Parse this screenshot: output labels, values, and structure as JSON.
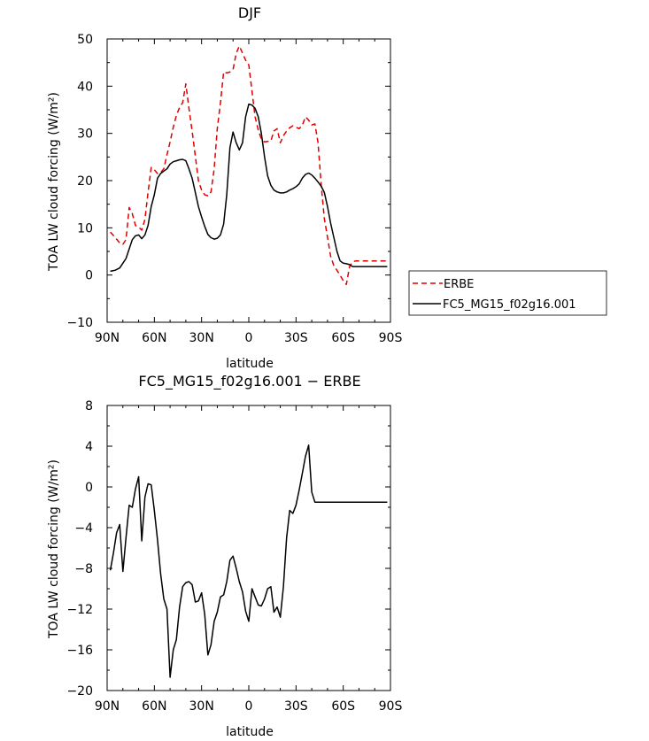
{
  "chart_data": [
    {
      "type": "line",
      "title": "DJF",
      "xlabel": "latitude",
      "ylabel": "TOA LW cloud forcing (W/m²)",
      "xlim": [
        90,
        -90
      ],
      "ylim": [
        -10,
        50
      ],
      "xticks": [
        90,
        60,
        30,
        0,
        -30,
        -60,
        -90
      ],
      "xtick_labels": [
        "90N",
        "60N",
        "30N",
        "0",
        "30S",
        "60S",
        "90S"
      ],
      "yticks": [
        -10,
        0,
        10,
        20,
        30,
        40,
        50
      ],
      "ytick_labels": [
        "−10",
        "0",
        "10",
        "20",
        "30",
        "40",
        "50"
      ],
      "legend": {
        "position": "right",
        "entries": [
          "ERBE",
          "FC5_MG15_f02g16.001"
        ]
      },
      "series": [
        {
          "name": "ERBE",
          "color": "#e00000",
          "dash": "dashed",
          "x": [
            88,
            85,
            82,
            80,
            78,
            76,
            74,
            72,
            70,
            68,
            66,
            64,
            62,
            60,
            58,
            56,
            54,
            52,
            50,
            48,
            46,
            44,
            42,
            40,
            38,
            36,
            34,
            32,
            30,
            28,
            26,
            24,
            22,
            20,
            18,
            16,
            14,
            12,
            10,
            8,
            6,
            4,
            2,
            0,
            -2,
            -4,
            -6,
            -8,
            -10,
            -12,
            -14,
            -16,
            -18,
            -20,
            -22,
            -24,
            -26,
            -28,
            -30,
            -32,
            -34,
            -36,
            -38,
            -40,
            -42,
            -44,
            -46,
            -48,
            -50,
            -52,
            -54,
            -56,
            -58,
            -60,
            -62,
            -64,
            -66,
            -68,
            -70,
            -72,
            -74,
            -76,
            -78,
            -80,
            -82,
            -84,
            -86,
            -88
          ],
          "y": [
            9.1,
            8,
            6.8,
            6.5,
            7.5,
            14.3,
            13,
            10.5,
            10.2,
            9.5,
            11.8,
            17.5,
            22.8,
            22.3,
            21.5,
            21.7,
            22.5,
            25.5,
            28.2,
            31.3,
            33.8,
            35.5,
            36.5,
            40.5,
            35.3,
            30.5,
            25.2,
            20,
            18,
            17,
            16.8,
            17.6,
            22.5,
            31,
            36.5,
            43,
            42.8,
            43,
            43.5,
            47,
            48.5,
            47,
            45.5,
            44.5,
            39,
            33.5,
            30.7,
            28.8,
            28.2,
            28.3,
            28.4,
            30.5,
            31,
            28,
            29.5,
            30.5,
            31.2,
            31.6,
            31.3,
            31,
            31.7,
            33.5,
            32.8,
            31.8,
            32,
            28,
            19,
            12,
            8,
            4,
            2,
            1,
            0,
            -1.2,
            -2,
            1.8,
            2.8,
            3,
            3,
            3,
            3,
            3,
            3,
            3,
            3,
            3,
            3,
            3
          ]
        },
        {
          "name": "FC5_MG15_f02g16.001",
          "color": "#000000",
          "dash": "solid",
          "x": [
            88,
            85,
            82,
            80,
            78,
            76,
            74,
            72,
            70,
            68,
            66,
            64,
            62,
            60,
            58,
            56,
            54,
            52,
            50,
            48,
            46,
            44,
            42,
            40,
            38,
            36,
            34,
            32,
            30,
            28,
            26,
            24,
            22,
            20,
            18,
            16,
            14,
            12,
            10,
            8,
            6,
            4,
            2,
            0,
            -2,
            -4,
            -6,
            -8,
            -10,
            -12,
            -14,
            -16,
            -18,
            -20,
            -22,
            -24,
            -26,
            -28,
            -30,
            -32,
            -34,
            -36,
            -38,
            -40,
            -42,
            -44,
            -46,
            -48,
            -50,
            -52,
            -54,
            -56,
            -58,
            -60,
            -62,
            -64,
            -66,
            -68,
            -70,
            -72,
            -74,
            -76,
            -78,
            -80,
            -82,
            -84,
            -86,
            -88
          ],
          "y": [
            0.8,
            1,
            1.5,
            2.5,
            3.5,
            5.5,
            7.5,
            8.3,
            8.5,
            7.7,
            8.5,
            10.5,
            14.5,
            17,
            20.5,
            21.5,
            22,
            22.5,
            23.5,
            24,
            24.2,
            24.4,
            24.5,
            24.2,
            22.5,
            20.5,
            17.5,
            14.5,
            12.3,
            10.3,
            8.6,
            7.9,
            7.6,
            7.8,
            8.5,
            10.8,
            17,
            27,
            30.3,
            28,
            26.5,
            28,
            33.5,
            36.2,
            36,
            35.3,
            33.5,
            30,
            25,
            21,
            19,
            18,
            17.6,
            17.4,
            17.4,
            17.6,
            18,
            18.3,
            18.7,
            19.3,
            20.5,
            21.3,
            21.6,
            21.2,
            20.5,
            19.7,
            18.8,
            17.5,
            14.5,
            11,
            8,
            5,
            3,
            2.5,
            2.4,
            2.2,
            1.8,
            1.8,
            1.8,
            1.8,
            1.8,
            1.8,
            1.8,
            1.8,
            1.8,
            1.8,
            1.8,
            1.8
          ]
        }
      ]
    },
    {
      "type": "line",
      "title": "FC5_MG15_f02g16.001 − ERBE",
      "xlabel": "latitude",
      "ylabel": "TOA LW cloud forcing (W/m²)",
      "xlim": [
        90,
        -90
      ],
      "ylim": [
        -20,
        8
      ],
      "xticks": [
        90,
        60,
        30,
        0,
        -30,
        -60,
        -90
      ],
      "xtick_labels": [
        "90N",
        "60N",
        "30N",
        "0",
        "30S",
        "60S",
        "90S"
      ],
      "yticks": [
        -20,
        -16,
        -12,
        -8,
        -4,
        0,
        4,
        8
      ],
      "ytick_labels": [
        "−20",
        "−16",
        "−12",
        "−8",
        "−4",
        "0",
        "4",
        "8"
      ],
      "series": [
        {
          "name": "FC5_MG15_f02g16.001 − ERBE",
          "color": "#000000",
          "dash": "solid",
          "x": [
            88,
            86,
            84,
            82,
            80,
            78,
            76,
            74,
            72,
            70,
            68,
            66,
            64,
            62,
            60,
            58,
            56,
            54,
            52,
            50,
            48,
            46,
            44,
            42,
            40,
            38,
            36,
            34,
            32,
            30,
            28,
            26,
            24,
            22,
            20,
            18,
            16,
            14,
            12,
            10,
            8,
            6,
            4,
            2,
            0,
            -2,
            -4,
            -6,
            -8,
            -10,
            -12,
            -14,
            -16,
            -18,
            -20,
            -22,
            -24,
            -26,
            -28,
            -30,
            -32,
            -34,
            -36,
            -38,
            -40,
            -42,
            -44,
            -46,
            -48,
            -50,
            -52,
            -54,
            -56,
            -58,
            -60,
            -62,
            -64,
            -66,
            -68,
            -70,
            -72,
            -74,
            -76,
            -78,
            -80,
            -82,
            -84,
            -86,
            -87,
            -88
          ],
          "y": [
            -8.2,
            -6.5,
            -4.5,
            -3.7,
            -8.3,
            -5,
            -1.8,
            -2,
            -0.2,
            1,
            -5.3,
            -1,
            0.3,
            0.2,
            -2.3,
            -5.2,
            -8.5,
            -11,
            -12,
            -18.7,
            -16,
            -15,
            -11.8,
            -9.8,
            -9.4,
            -9.3,
            -9.6,
            -11.3,
            -11.2,
            -10.4,
            -12.5,
            -16.5,
            -15.5,
            -13.2,
            -12.3,
            -10.8,
            -10.6,
            -9.3,
            -7.2,
            -6.8,
            -8,
            -9.3,
            -10.3,
            -12.2,
            -13.2,
            -10,
            -10.8,
            -11.6,
            -11.7,
            -11,
            -10,
            -9.8,
            -12.3,
            -11.8,
            -12.8,
            -9.8,
            -5,
            -2.3,
            -2.6,
            -1.8,
            -0.3,
            1.3,
            3,
            4.1,
            -0.5,
            -1.5,
            -1.5,
            -1.5,
            -1.5,
            -1.5,
            -1.5,
            -1.5,
            -1.5,
            -1.5,
            -1.5,
            -1.5,
            -1.5,
            -1.5,
            -1.5,
            -1.5,
            -1.5,
            -1.5,
            -1.5,
            -1.5,
            -1.5,
            -1.5,
            -1.5,
            -1.5,
            -1.5,
            -1.5
          ]
        }
      ]
    }
  ]
}
